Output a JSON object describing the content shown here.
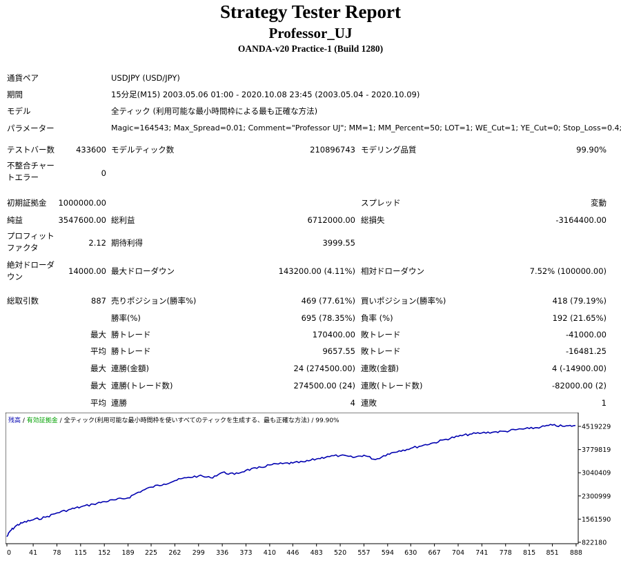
{
  "header": {
    "title": "Strategy Tester Report",
    "expert": "Professor_UJ",
    "server": "OANDA-v20 Practice-1 (Build 1280)"
  },
  "info": [
    {
      "label": "通貨ペア",
      "value": "USDJPY (USD/JPY)"
    },
    {
      "label": "期間",
      "value": "15分足(M15) 2003.05.06 01:00 - 2020.10.08 23:45 (2003.05.04 - 2020.10.09)"
    },
    {
      "label": "モデル",
      "value": "全ティック (利用可能な最小時間枠による最も正確な方法)"
    },
    {
      "label": "パラメーター",
      "value": "Magic=164543; Max_Spread=0.01; Comment=\"Professor UJ\"; MM=1; MM_Percent=50; LOT=1; WE_Cut=1; YE_Cut=0; Stop_Loss=0.4;"
    }
  ],
  "bars": {
    "bars_label": "テストバー数",
    "bars_value": "433600",
    "ticks_label": "モデルティック数",
    "ticks_value": "210896743",
    "quality_label": "モデリング品質",
    "quality_value": "99.90%",
    "mismatch_label": "不整合チャートエラー",
    "mismatch_value": "0"
  },
  "funds": {
    "deposit_label": "初期証拠金",
    "deposit_value": "1000000.00",
    "spread_label": "スプレッド",
    "spread_value": "変動",
    "net_label": "純益",
    "net_value": "3547600.00",
    "gross_profit_label": "総利益",
    "gross_profit_value": "6712000.00",
    "gross_loss_label": "総損失",
    "gross_loss_value": "-3164400.00",
    "pf_label": "プロフィットファクタ",
    "pf_value": "2.12",
    "payoff_label": "期待利得",
    "payoff_value": "3999.55",
    "abs_dd_label": "絶対ドローダウン",
    "abs_dd_value": "14000.00",
    "max_dd_label": "最大ドローダウン",
    "max_dd_value": "143200.00 (4.11%)",
    "rel_dd_label": "相対ドローダウン",
    "rel_dd_value": "7.52% (100000.00)"
  },
  "trades": {
    "total_label": "総取引数",
    "total_value": "887",
    "short_label": "売りポジション(勝率%)",
    "short_value": "469 (77.61%)",
    "long_label": "買いポジション(勝率%)",
    "long_value": "418 (79.19%)",
    "win_label": "勝率(%)",
    "win_value": "695 (78.35%)",
    "loss_label": "負率 (%)",
    "loss_value": "192 (21.65%)",
    "pfx_max": "最大",
    "pfx_avg": "平均",
    "largest_win_label": "勝トレード",
    "largest_win_value": "170400.00",
    "largest_loss_label": "敗トレード",
    "largest_loss_value": "-41000.00",
    "avg_win_label": "勝トレード",
    "avg_win_value": "9657.55",
    "avg_loss_label": "敗トレード",
    "avg_loss_value": "-16481.25",
    "max_cons_wins_label": "連勝(金額)",
    "max_cons_wins_value": "24 (274500.00)",
    "max_cons_losses_label": "連敗(金額)",
    "max_cons_losses_value": "4 (-14900.00)",
    "max_cons_profit_label": "連勝(トレード数)",
    "max_cons_profit_value": "274500.00 (24)",
    "max_cons_loss_label": "連敗(トレード数)",
    "max_cons_loss_value": "-82000.00 (2)",
    "avg_cons_wins_label": "連勝",
    "avg_cons_wins_value": "4",
    "avg_cons_losses_label": "連敗",
    "avg_cons_losses_value": "1"
  },
  "chart_data": {
    "type": "line",
    "legend": {
      "balance": "残高",
      "sep1": " / ",
      "equity": "有効証拠金",
      "sep2": " / ",
      "model": "全ティック(利用可能な最小時間枠を使いすべてのティックを生成する、最も正確な方法)",
      "quality": " / 99.90%"
    },
    "legend_placement": "top-left",
    "colors": {
      "balance": "#0000b0",
      "equity": "#00a000",
      "axis": "#000000"
    },
    "x_ticks": [
      "0",
      "41",
      "78",
      "115",
      "152",
      "189",
      "225",
      "262",
      "299",
      "336",
      "373",
      "410",
      "446",
      "483",
      "520",
      "557",
      "594",
      "630",
      "667",
      "704",
      "741",
      "778",
      "815",
      "851",
      "888"
    ],
    "y_ticks": [
      "4519229",
      "3779819",
      "3040409",
      "2300999",
      "1561590",
      "822180"
    ],
    "xlim": [
      0,
      887
    ],
    "ylim": [
      822180,
      4519229
    ],
    "series": [
      {
        "x": [
          0,
          5,
          15,
          25,
          41,
          60,
          78,
          100,
          115,
          135,
          152,
          170,
          189,
          205,
          225,
          245,
          262,
          280,
          299,
          318,
          336,
          355,
          373,
          390,
          410,
          430,
          446,
          465,
          483,
          500,
          520,
          540,
          557,
          575,
          594,
          612,
          630,
          650,
          667,
          685,
          704,
          722,
          741,
          760,
          778,
          796,
          815,
          833,
          851,
          870,
          887
        ],
        "y": [
          1000000,
          1180000,
          1360000,
          1450000,
          1540000,
          1620000,
          1760000,
          1880000,
          1950000,
          2040000,
          2120000,
          2180000,
          2240000,
          2420000,
          2580000,
          2680000,
          2790000,
          2880000,
          2940000,
          2880000,
          3050000,
          2990000,
          3120000,
          3180000,
          3290000,
          3330000,
          3350000,
          3390000,
          3480000,
          3560000,
          3590000,
          3530000,
          3600000,
          3460000,
          3640000,
          3740000,
          3820000,
          3920000,
          4000000,
          4110000,
          4200000,
          4270000,
          4310000,
          4340000,
          4360000,
          4420000,
          4450000,
          4500000,
          4560000,
          4520000,
          4547600
        ]
      }
    ]
  }
}
